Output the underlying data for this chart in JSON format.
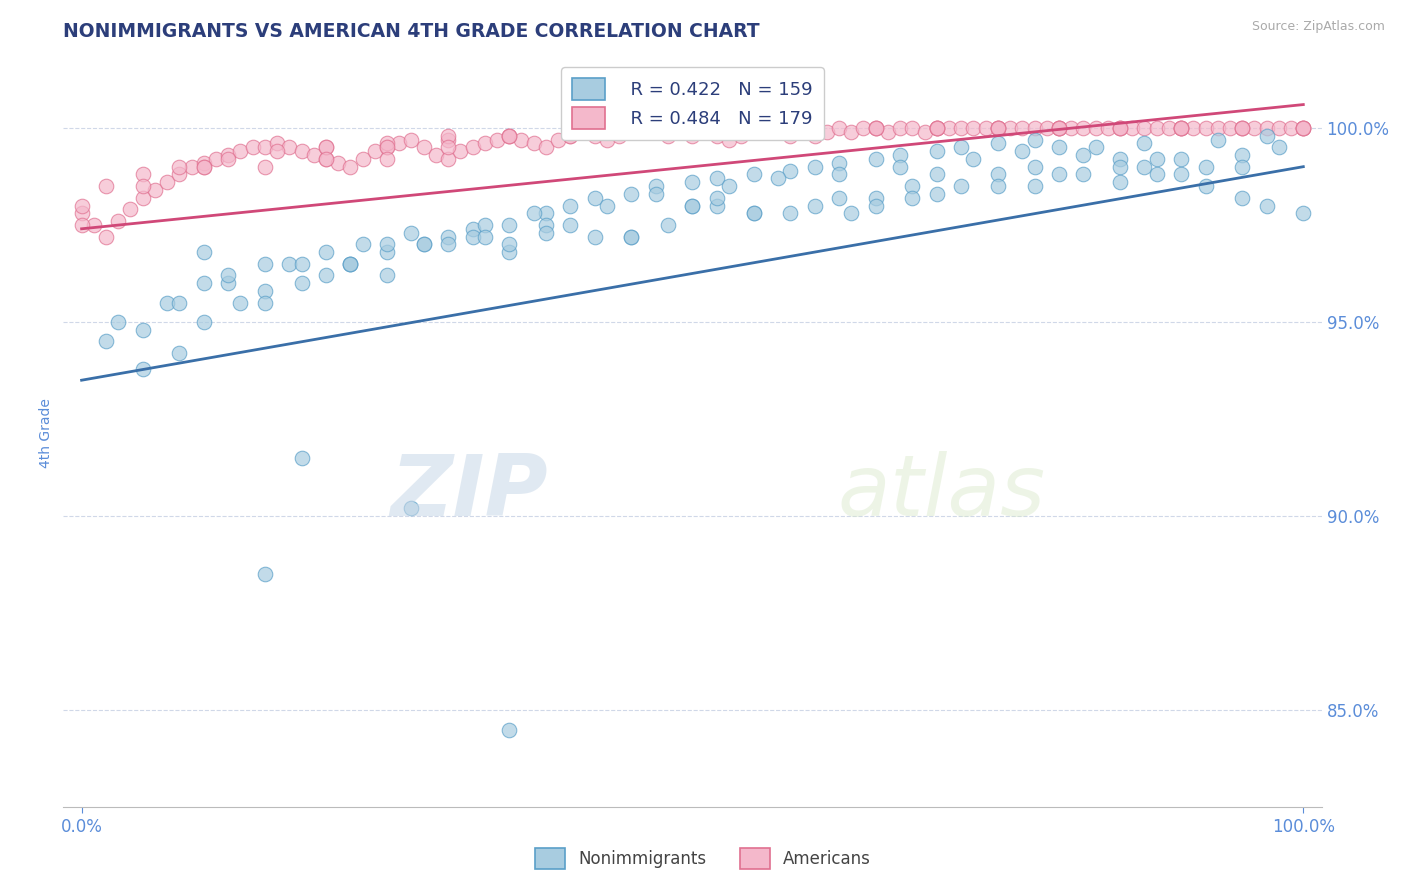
{
  "title": "NONIMMIGRANTS VS AMERICAN 4TH GRADE CORRELATION CHART",
  "source_text": "Source: ZipAtlas.com",
  "ylabel_left": "4th Grade",
  "y_ticks": [
    85.0,
    90.0,
    95.0,
    100.0
  ],
  "y_tick_labels": [
    "85.0%",
    "90.0%",
    "95.0%",
    "100.0%"
  ],
  "y_min": 82.5,
  "y_max": 101.8,
  "x_min": -1.5,
  "x_max": 101.5,
  "blue_R": 0.422,
  "blue_N": 159,
  "pink_R": 0.484,
  "pink_N": 179,
  "blue_color": "#a8cce0",
  "pink_color": "#f4b8cb",
  "blue_edge_color": "#5a9fc8",
  "pink_edge_color": "#e07090",
  "blue_line_color": "#3a6fa8",
  "pink_line_color": "#d04878",
  "legend_label_blue": "Nonimmigrants",
  "legend_label_pink": "Americans",
  "watermark_zip": "ZIP",
  "watermark_atlas": "atlas",
  "title_color": "#2c3e7a",
  "tick_color": "#5b8dd9",
  "background_color": "#ffffff",
  "grid_color": "#d0d8e8",
  "blue_trend_x0": 0,
  "blue_trend_x1": 100,
  "blue_trend_y0": 93.5,
  "blue_trend_y1": 99.0,
  "pink_trend_x0": 0,
  "pink_trend_x1": 100,
  "pink_trend_y0": 97.4,
  "pink_trend_y1": 100.6,
  "blue_scatter_x": [
    2,
    5,
    8,
    10,
    13,
    15,
    18,
    20,
    22,
    25,
    28,
    30,
    32,
    35,
    38,
    40,
    42,
    45,
    47,
    50,
    52,
    55,
    58,
    60,
    62,
    65,
    67,
    70,
    72,
    75,
    78,
    80,
    82,
    85,
    87,
    90,
    92,
    95,
    97,
    100,
    3,
    7,
    12,
    17,
    23,
    27,
    33,
    37,
    43,
    47,
    53,
    57,
    62,
    67,
    73,
    77,
    83,
    87,
    93,
    97,
    5,
    15,
    25,
    35,
    45,
    55,
    65,
    75,
    85,
    95,
    8,
    22,
    38,
    52,
    68,
    78,
    88,
    98,
    10,
    30,
    50,
    70,
    90,
    18,
    42,
    62,
    82,
    12,
    35,
    55,
    78,
    92,
    20,
    48,
    68,
    88,
    25,
    58,
    75,
    95,
    15,
    45,
    65,
    85,
    32,
    60,
    80,
    40,
    72,
    28,
    52,
    38,
    70,
    10,
    50,
    22,
    63,
    33,
    18,
    27,
    15,
    35
  ],
  "blue_scatter_y": [
    94.5,
    93.8,
    94.2,
    95.0,
    95.5,
    95.8,
    96.0,
    96.2,
    96.5,
    96.8,
    97.0,
    97.2,
    97.4,
    97.5,
    97.8,
    98.0,
    98.2,
    98.3,
    98.5,
    98.6,
    98.7,
    98.8,
    98.9,
    99.0,
    99.1,
    99.2,
    99.3,
    99.4,
    99.5,
    99.6,
    99.7,
    99.5,
    99.3,
    99.2,
    99.0,
    98.8,
    98.5,
    98.2,
    98.0,
    97.8,
    95.0,
    95.5,
    96.0,
    96.5,
    97.0,
    97.3,
    97.5,
    97.8,
    98.0,
    98.3,
    98.5,
    98.7,
    98.8,
    99.0,
    99.2,
    99.4,
    99.5,
    99.6,
    99.7,
    99.8,
    94.8,
    95.5,
    96.2,
    96.8,
    97.2,
    97.8,
    98.2,
    98.8,
    99.0,
    99.3,
    95.5,
    96.5,
    97.5,
    98.0,
    98.5,
    99.0,
    99.2,
    99.5,
    96.0,
    97.0,
    98.0,
    98.8,
    99.2,
    96.5,
    97.2,
    98.2,
    98.8,
    96.2,
    97.0,
    97.8,
    98.5,
    99.0,
    96.8,
    97.5,
    98.2,
    98.8,
    97.0,
    97.8,
    98.5,
    99.0,
    96.5,
    97.2,
    98.0,
    98.6,
    97.2,
    98.0,
    98.8,
    97.5,
    98.5,
    97.0,
    98.2,
    97.3,
    98.3,
    96.8,
    98.0,
    96.5,
    97.8,
    97.2,
    91.5,
    90.2,
    88.5,
    84.5
  ],
  "pink_scatter_x": [
    0,
    1,
    2,
    3,
    4,
    5,
    6,
    7,
    8,
    9,
    10,
    11,
    12,
    13,
    14,
    15,
    16,
    17,
    18,
    19,
    20,
    21,
    22,
    23,
    24,
    25,
    26,
    27,
    28,
    29,
    30,
    31,
    32,
    33,
    34,
    35,
    36,
    37,
    38,
    39,
    40,
    41,
    42,
    43,
    44,
    45,
    46,
    47,
    48,
    49,
    50,
    51,
    52,
    53,
    54,
    55,
    56,
    57,
    58,
    59,
    60,
    61,
    62,
    63,
    64,
    65,
    66,
    67,
    68,
    69,
    70,
    71,
    72,
    73,
    74,
    75,
    76,
    77,
    78,
    79,
    80,
    81,
    82,
    83,
    84,
    85,
    86,
    87,
    88,
    89,
    90,
    91,
    92,
    93,
    94,
    95,
    96,
    97,
    98,
    99,
    100,
    2,
    5,
    8,
    12,
    16,
    20,
    25,
    30,
    35,
    40,
    45,
    50,
    55,
    60,
    65,
    70,
    75,
    80,
    85,
    90,
    95,
    100,
    0,
    10,
    20,
    30,
    40,
    50,
    60,
    70,
    80,
    90,
    100,
    5,
    15,
    25,
    35,
    45,
    55,
    65,
    75,
    85,
    95,
    0,
    25,
    50,
    75,
    100,
    10,
    40,
    70,
    20,
    60,
    90,
    30,
    80
  ],
  "pink_scatter_y": [
    97.8,
    97.5,
    97.2,
    97.6,
    97.9,
    98.2,
    98.4,
    98.6,
    98.8,
    99.0,
    99.1,
    99.2,
    99.3,
    99.4,
    99.5,
    99.5,
    99.6,
    99.5,
    99.4,
    99.3,
    99.2,
    99.1,
    99.0,
    99.2,
    99.4,
    99.5,
    99.6,
    99.7,
    99.5,
    99.3,
    99.2,
    99.4,
    99.5,
    99.6,
    99.7,
    99.8,
    99.7,
    99.6,
    99.5,
    99.7,
    99.8,
    99.9,
    99.8,
    99.7,
    99.8,
    99.9,
    100.0,
    99.9,
    99.8,
    99.9,
    100.0,
    99.9,
    99.8,
    99.7,
    99.8,
    99.9,
    100.0,
    99.9,
    99.8,
    99.9,
    100.0,
    99.9,
    100.0,
    99.9,
    100.0,
    100.0,
    99.9,
    100.0,
    100.0,
    99.9,
    100.0,
    100.0,
    100.0,
    100.0,
    100.0,
    100.0,
    100.0,
    100.0,
    100.0,
    100.0,
    100.0,
    100.0,
    100.0,
    100.0,
    100.0,
    100.0,
    100.0,
    100.0,
    100.0,
    100.0,
    100.0,
    100.0,
    100.0,
    100.0,
    100.0,
    100.0,
    100.0,
    100.0,
    100.0,
    100.0,
    100.0,
    98.5,
    98.8,
    99.0,
    99.2,
    99.4,
    99.5,
    99.6,
    99.7,
    99.8,
    99.9,
    100.0,
    100.0,
    100.0,
    100.0,
    100.0,
    100.0,
    100.0,
    100.0,
    100.0,
    100.0,
    100.0,
    100.0,
    98.0,
    99.0,
    99.5,
    99.8,
    100.0,
    100.0,
    100.0,
    100.0,
    100.0,
    100.0,
    100.0,
    98.5,
    99.0,
    99.5,
    99.8,
    100.0,
    100.0,
    100.0,
    100.0,
    100.0,
    100.0,
    97.5,
    99.2,
    99.8,
    100.0,
    100.0,
    99.0,
    99.8,
    100.0,
    99.2,
    99.8,
    100.0,
    99.5,
    100.0
  ]
}
